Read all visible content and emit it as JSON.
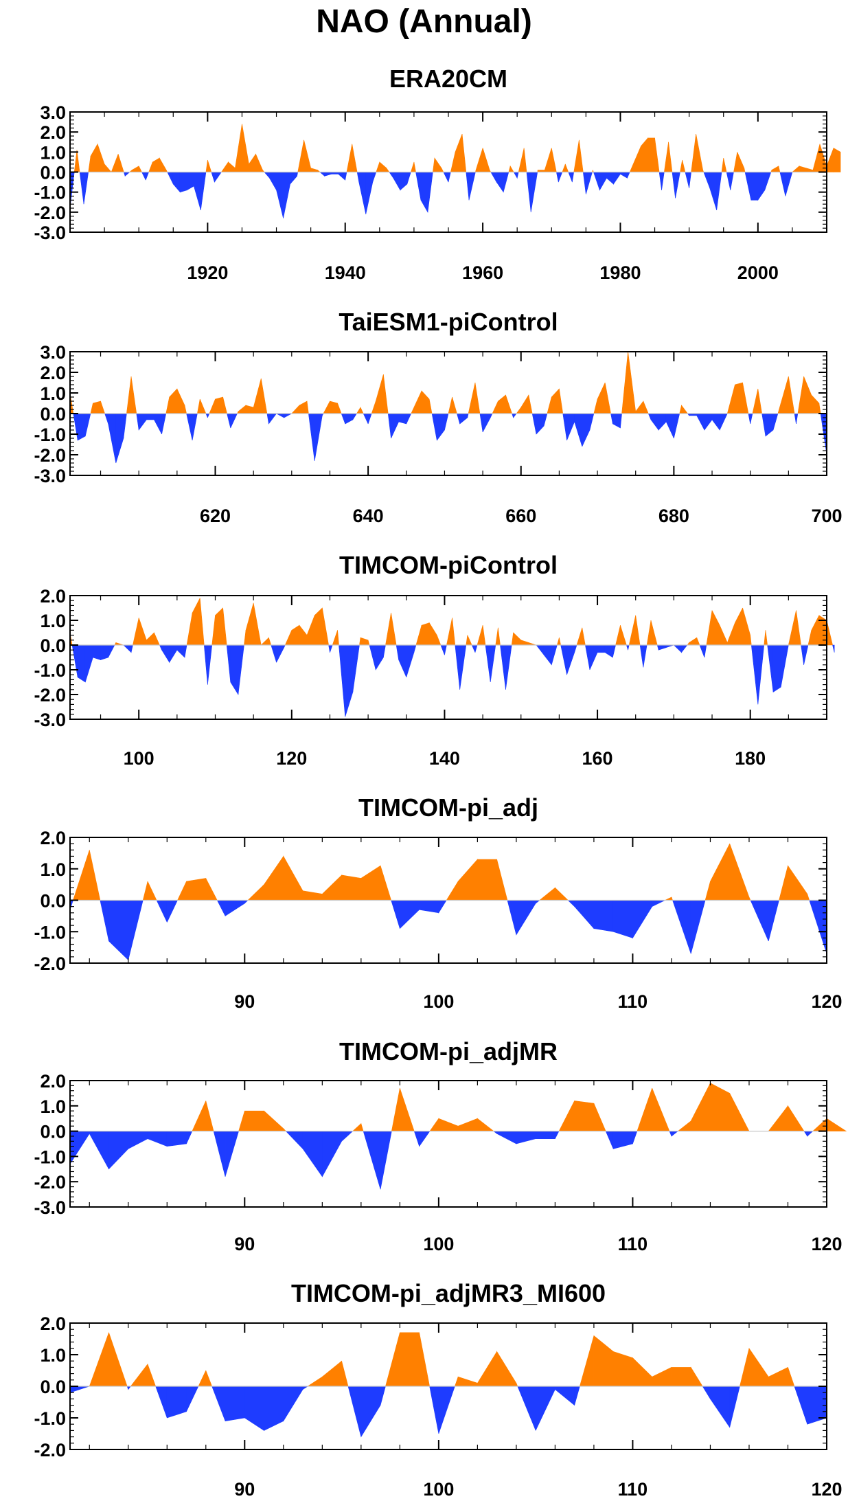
{
  "title": "NAO (Annual)",
  "colors": {
    "positive": "#ff8000",
    "negative": "#1e3cff",
    "axis": "#000000"
  },
  "chart_data": [
    {
      "type": "area",
      "title": "ERA20CM",
      "xlim": [
        1900,
        2010
      ],
      "ylim": [
        -3.0,
        3.0
      ],
      "xticks": [
        1920,
        1940,
        1960,
        1980,
        2000
      ],
      "yticks": [
        "3.0",
        "2.0",
        "1.0",
        "0.0",
        "-1.0",
        "-2.0",
        "-3.0"
      ],
      "x_start": 1900,
      "values": [
        -1.8,
        1.1,
        -1.6,
        0.8,
        1.4,
        0.4,
        0.0,
        0.9,
        -0.2,
        0.1,
        0.3,
        -0.4,
        0.5,
        0.7,
        0.1,
        -0.6,
        -1.0,
        -0.9,
        -0.7,
        -1.9,
        0.6,
        -0.5,
        0.0,
        0.5,
        0.2,
        2.4,
        0.4,
        0.9,
        0.1,
        -0.3,
        -0.9,
        -2.3,
        -0.6,
        -0.2,
        1.6,
        0.2,
        0.1,
        -0.2,
        -0.1,
        -0.1,
        -0.4,
        1.4,
        -0.5,
        -2.1,
        -0.5,
        0.5,
        0.2,
        -0.3,
        -0.9,
        -0.6,
        0.5,
        -1.4,
        -2.0,
        0.7,
        0.2,
        -0.5,
        1.0,
        1.9,
        -1.4,
        0.1,
        1.2,
        0.1,
        -0.5,
        -1.0,
        0.3,
        -0.3,
        1.2,
        -2.0,
        0.1,
        0.1,
        1.2,
        -0.5,
        0.4,
        -0.5,
        1.6,
        -1.1,
        0.1,
        -0.9,
        -0.3,
        -0.6,
        -0.1,
        -0.3,
        0.5,
        1.3,
        1.7,
        1.7,
        -0.9,
        1.5,
        -1.3,
        0.6,
        -0.8,
        1.9,
        0.1,
        -0.8,
        -1.9,
        0.7,
        -0.9,
        1.0,
        0.2,
        -1.4,
        -1.4,
        -0.9,
        0.1,
        0.3,
        -1.2,
        0.0,
        0.3,
        0.2,
        0.1,
        1.4,
        0.3,
        1.2,
        1.0
      ]
    },
    {
      "type": "area",
      "title": "TaiESM1-piControl",
      "xlim": [
        601,
        700
      ],
      "ylim": [
        -3.0,
        3.0
      ],
      "xticks": [
        620,
        640,
        660,
        680,
        700
      ],
      "yticks": [
        "3.0",
        "2.0",
        "1.0",
        "0.0",
        "-1.0",
        "-2.0",
        "-3.0"
      ],
      "x_start": 601,
      "values": [
        1.0,
        -1.3,
        -1.1,
        0.5,
        0.6,
        -0.5,
        -2.4,
        -1.2,
        1.8,
        -0.8,
        -0.3,
        -0.3,
        -1.0,
        0.8,
        1.2,
        0.4,
        -1.3,
        0.7,
        -0.2,
        0.7,
        0.8,
        -0.7,
        0.1,
        0.4,
        0.3,
        1.7,
        -0.5,
        0.0,
        -0.2,
        0.0,
        0.4,
        0.6,
        -2.3,
        -0.1,
        0.6,
        0.5,
        -0.5,
        -0.3,
        0.3,
        -0.5,
        0.6,
        1.9,
        -1.2,
        -0.4,
        -0.5,
        0.3,
        1.1,
        0.7,
        -1.3,
        -0.8,
        0.8,
        -0.5,
        -0.2,
        1.5,
        -0.9,
        -0.2,
        0.6,
        0.9,
        -0.2,
        0.3,
        0.9,
        -1.0,
        -0.6,
        0.8,
        1.2,
        -1.3,
        -0.4,
        -1.6,
        -0.8,
        0.7,
        1.5,
        -0.5,
        -0.7,
        3.0,
        0.1,
        0.6,
        -0.3,
        -0.8,
        -0.4,
        -1.2,
        0.4,
        -0.1,
        -0.1,
        -0.8,
        -0.3,
        -0.8,
        0.0,
        1.4,
        1.5,
        -0.5,
        1.2,
        -1.1,
        -0.8,
        0.5,
        1.8,
        -0.5,
        1.8,
        0.9,
        0.5,
        -2.0
      ]
    },
    {
      "type": "area",
      "title": "TIMCOM-piControl",
      "xlim": [
        91,
        190
      ],
      "ylim": [
        -3.0,
        2.0
      ],
      "xticks": [
        100,
        120,
        140,
        160,
        180
      ],
      "yticks": [
        "2.0",
        "1.0",
        "0.0",
        "-1.0",
        "-2.0",
        "-3.0"
      ],
      "x_start": 91,
      "values": [
        0.5,
        -1.3,
        -1.5,
        -0.5,
        -0.6,
        -0.5,
        0.1,
        0.0,
        -0.3,
        1.1,
        0.2,
        0.5,
        -0.2,
        -0.7,
        -0.2,
        -0.5,
        1.3,
        1.9,
        -1.6,
        1.2,
        1.5,
        -1.5,
        -2.0,
        0.6,
        1.7,
        0.0,
        0.3,
        -0.7,
        -0.1,
        0.6,
        0.8,
        0.4,
        1.2,
        1.5,
        -0.3,
        0.6,
        -2.9,
        -1.9,
        0.3,
        0.2,
        -1.0,
        -0.5,
        1.3,
        -0.6,
        -1.3,
        -0.3,
        0.8,
        0.9,
        0.4,
        -0.4,
        1.1,
        -1.8,
        0.4,
        -0.3,
        0.8,
        -1.5,
        0.7,
        -1.8,
        0.5,
        0.2,
        0.1,
        0.0,
        -0.4,
        -0.8,
        0.3,
        -1.2,
        -0.3,
        0.7,
        -1.0,
        -0.3,
        -0.3,
        -0.5,
        0.8,
        -0.2,
        1.2,
        -0.9,
        1.0,
        -0.2,
        -0.1,
        0.0,
        -0.3,
        0.1,
        0.3,
        -0.5,
        1.4,
        0.8,
        0.1,
        0.9,
        1.5,
        0.4,
        -2.4,
        0.6,
        -1.9,
        -1.7,
        0.0,
        1.4,
        -0.8,
        0.6,
        1.2,
        1.0,
        -0.3
      ]
    },
    {
      "type": "area",
      "title": "TIMCOM-pi_adj",
      "xlim": [
        81,
        120
      ],
      "ylim": [
        -2.0,
        2.0
      ],
      "xticks": [
        90,
        100,
        110,
        120
      ],
      "yticks": [
        "2.0",
        "1.0",
        "0.0",
        "-1.0",
        "-2.0"
      ],
      "x_start": 81,
      "values": [
        -0.3,
        1.6,
        -1.3,
        -1.9,
        0.6,
        -0.7,
        0.6,
        0.7,
        -0.5,
        -0.1,
        0.5,
        1.4,
        0.3,
        0.2,
        0.8,
        0.7,
        1.1,
        -0.9,
        -0.3,
        -0.4,
        0.6,
        1.3,
        1.3,
        -1.1,
        -0.1,
        0.4,
        -0.2,
        -0.9,
        -1.0,
        -1.2,
        -0.2,
        0.1,
        -1.7,
        0.6,
        1.8,
        0.1,
        -1.3,
        1.1,
        0.2,
        -1.7
      ]
    },
    {
      "type": "area",
      "title": "TIMCOM-pi_adjMR",
      "xlim": [
        81,
        120
      ],
      "ylim": [
        -3.0,
        2.0
      ],
      "xticks": [
        90,
        100,
        110,
        120
      ],
      "yticks": [
        "2.0",
        "1.0",
        "0.0",
        "-1.0",
        "-2.0",
        "-3.0"
      ],
      "x_start": 81,
      "values": [
        -1.3,
        -0.1,
        -1.5,
        -0.7,
        -0.3,
        -0.6,
        -0.5,
        1.2,
        -1.8,
        0.8,
        0.8,
        0.1,
        -0.7,
        -1.8,
        -0.4,
        0.3,
        -2.3,
        1.7,
        -0.6,
        0.5,
        0.2,
        0.5,
        -0.1,
        -0.5,
        -0.3,
        -0.3,
        1.2,
        1.1,
        -0.7,
        -0.5,
        1.7,
        -0.2,
        0.4,
        1.9,
        1.5,
        0.0,
        0.0,
        1.0,
        -0.2,
        0.5,
        0.0
      ]
    },
    {
      "type": "area",
      "title": "TIMCOM-pi_adjMR3_MI600",
      "xlim": [
        81,
        120
      ],
      "ylim": [
        -2.0,
        2.0
      ],
      "xticks": [
        90,
        100,
        110,
        120
      ],
      "yticks": [
        "2.0",
        "1.0",
        "0.0",
        "-1.0",
        "-2.0"
      ],
      "x_start": 81,
      "values": [
        -0.2,
        0.0,
        1.7,
        -0.1,
        0.7,
        -1.0,
        -0.8,
        0.5,
        -1.1,
        -1.0,
        -1.4,
        -1.1,
        -0.1,
        0.3,
        0.8,
        -1.6,
        -0.6,
        1.7,
        1.7,
        -1.5,
        0.3,
        0.1,
        1.1,
        0.1,
        -1.4,
        -0.1,
        -0.6,
        1.6,
        1.1,
        0.9,
        0.3,
        0.6,
        0.6,
        -0.4,
        -1.3,
        1.2,
        0.3,
        0.6,
        -1.2,
        -1.0
      ]
    }
  ]
}
